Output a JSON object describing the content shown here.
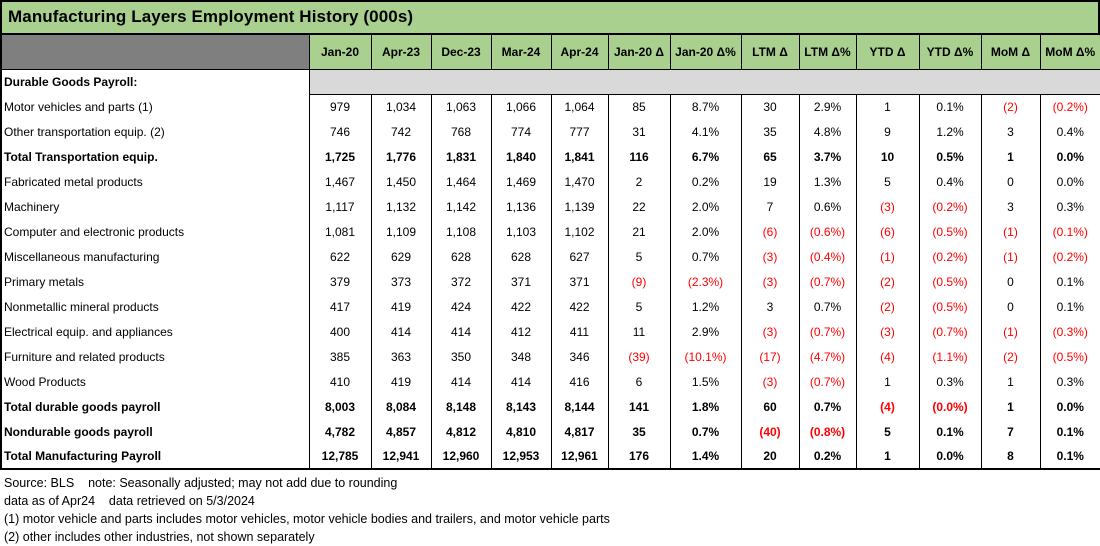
{
  "title": "Manufacturing Layers Employment History (000s)",
  "colors": {
    "header_green": "#A9D08E",
    "corner_gray": "#7F7F7F",
    "section_band_gray": "#D9D9D9",
    "negative_red": "#FF0000"
  },
  "columns": [
    "Jan-20",
    "Apr-23",
    "Dec-23",
    "Mar-24",
    "Apr-24",
    "Jan-20 Δ",
    "Jan-20 Δ%",
    "LTM Δ",
    "LTM Δ%",
    "YTD Δ",
    "YTD Δ%",
    "MoM Δ",
    "MoM Δ%"
  ],
  "rows": [
    {
      "label": "Durable Goods Payroll:",
      "type": "section",
      "indent": 1,
      "values": []
    },
    {
      "label": "Motor vehicles and parts (1)",
      "type": "item",
      "indent": 3,
      "values": [
        "979",
        "1,034",
        "1,063",
        "1,066",
        "1,064",
        "85",
        "8.7%",
        "30",
        "2.9%",
        "1",
        "0.1%",
        "(2)",
        "(0.2%)"
      ]
    },
    {
      "label": "Other transportation equip. (2)",
      "type": "item",
      "indent": 3,
      "values": [
        "746",
        "742",
        "768",
        "774",
        "777",
        "31",
        "4.1%",
        "35",
        "4.8%",
        "9",
        "1.2%",
        "3",
        "0.4%"
      ]
    },
    {
      "label": "Total Transportation equip.",
      "type": "subtotal",
      "indent": 2,
      "values": [
        "1,725",
        "1,776",
        "1,831",
        "1,840",
        "1,841",
        "116",
        "6.7%",
        "65",
        "3.7%",
        "10",
        "0.5%",
        "1",
        "0.0%"
      ]
    },
    {
      "label": "Fabricated metal products",
      "type": "item",
      "indent": 3,
      "values": [
        "1,467",
        "1,450",
        "1,464",
        "1,469",
        "1,470",
        "2",
        "0.2%",
        "19",
        "1.3%",
        "5",
        "0.4%",
        "0",
        "0.0%"
      ]
    },
    {
      "label": "Machinery",
      "type": "item",
      "indent": 3,
      "values": [
        "1,117",
        "1,132",
        "1,142",
        "1,136",
        "1,139",
        "22",
        "2.0%",
        "7",
        "0.6%",
        "(3)",
        "(0.2%)",
        "3",
        "0.3%"
      ]
    },
    {
      "label": "Computer and electronic products",
      "type": "item",
      "indent": 3,
      "values": [
        "1,081",
        "1,109",
        "1,108",
        "1,103",
        "1,102",
        "21",
        "2.0%",
        "(6)",
        "(0.6%)",
        "(6)",
        "(0.5%)",
        "(1)",
        "(0.1%)"
      ]
    },
    {
      "label": "Miscellaneous manufacturing",
      "type": "item",
      "indent": 3,
      "values": [
        "622",
        "629",
        "628",
        "628",
        "627",
        "5",
        "0.7%",
        "(3)",
        "(0.4%)",
        "(1)",
        "(0.2%)",
        "(1)",
        "(0.2%)"
      ]
    },
    {
      "label": "Primary metals",
      "type": "item",
      "indent": 3,
      "values": [
        "379",
        "373",
        "372",
        "371",
        "371",
        "(9)",
        "(2.3%)",
        "(3)",
        "(0.7%)",
        "(2)",
        "(0.5%)",
        "0",
        "0.1%"
      ]
    },
    {
      "label": "Nonmetallic mineral products",
      "type": "item",
      "indent": 3,
      "values": [
        "417",
        "419",
        "424",
        "422",
        "422",
        "5",
        "1.2%",
        "3",
        "0.7%",
        "(2)",
        "(0.5%)",
        "0",
        "0.1%"
      ]
    },
    {
      "label": "Electrical equip. and appliances",
      "type": "item",
      "indent": 3,
      "values": [
        "400",
        "414",
        "414",
        "412",
        "411",
        "11",
        "2.9%",
        "(3)",
        "(0.7%)",
        "(3)",
        "(0.7%)",
        "(1)",
        "(0.3%)"
      ]
    },
    {
      "label": "Furniture and related products",
      "type": "item",
      "indent": 3,
      "values": [
        "385",
        "363",
        "350",
        "348",
        "346",
        "(39)",
        "(10.1%)",
        "(17)",
        "(4.7%)",
        "(4)",
        "(1.1%)",
        "(2)",
        "(0.5%)"
      ]
    },
    {
      "label": "Wood Products",
      "type": "item",
      "indent": 3,
      "values": [
        "410",
        "419",
        "414",
        "414",
        "416",
        "6",
        "1.5%",
        "(3)",
        "(0.7%)",
        "1",
        "0.3%",
        "1",
        "0.3%"
      ]
    },
    {
      "label": "Total durable goods payroll",
      "type": "subtotal",
      "indent": 1,
      "values": [
        "8,003",
        "8,084",
        "8,148",
        "8,143",
        "8,144",
        "141",
        "1.8%",
        "60",
        "0.7%",
        "(4)",
        "(0.0%)",
        "1",
        "0.0%"
      ]
    },
    {
      "label": "Nondurable goods payroll",
      "type": "subtotal",
      "indent": 1,
      "values": [
        "4,782",
        "4,857",
        "4,812",
        "4,810",
        "4,817",
        "35",
        "0.7%",
        "(40)",
        "(0.8%)",
        "5",
        "0.1%",
        "7",
        "0.1%"
      ]
    },
    {
      "label": "Total Manufacturing Payroll",
      "type": "total",
      "indent": 0,
      "values": [
        "12,785",
        "12,941",
        "12,960",
        "12,953",
        "12,961",
        "176",
        "1.4%",
        "20",
        "0.2%",
        "1",
        "0.0%",
        "8",
        "0.1%"
      ]
    }
  ],
  "footer": {
    "line1": "Source: BLS    note: Seasonally adjusted; may not add due to rounding",
    "line2": "data as of Apr24    data retrieved on 5/3/2024",
    "line3": "(1) motor vehicle and parts includes motor vehicles, motor vehicle bodies and trailers, and motor vehicle parts",
    "line4": "(2) other includes other industries, not shown separately"
  }
}
